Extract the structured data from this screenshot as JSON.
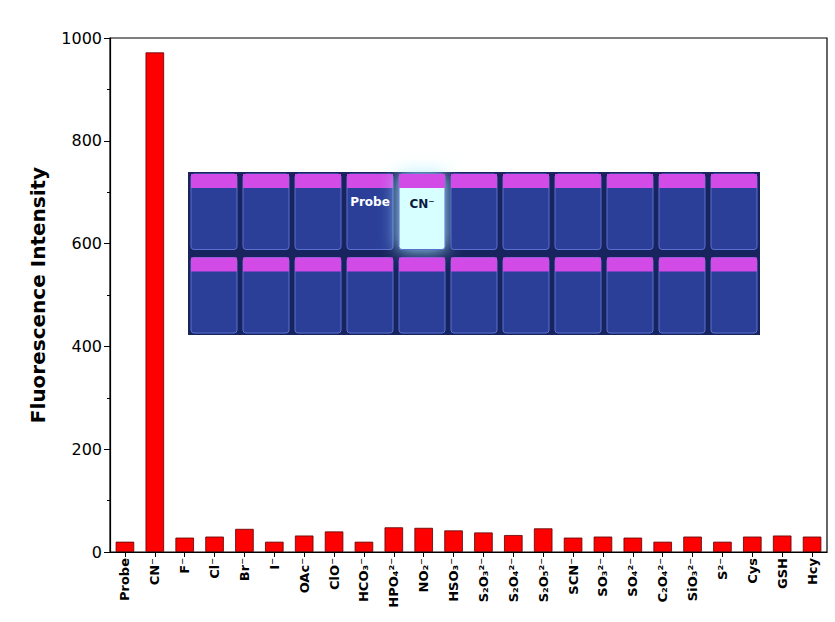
{
  "chart_data": {
    "type": "bar",
    "y_label": "Fluorescence Intensity",
    "categories": [
      "Probe",
      "CN⁻",
      "F⁻",
      "Cl⁻",
      "Br⁻",
      "I⁻",
      "OAc⁻",
      "ClO⁻",
      "HCO₃⁻",
      "HPO₄²⁻",
      "NO₂⁻",
      "HSO₃⁻",
      "S₂O₃²⁻",
      "S₂O₄²⁻",
      "S₂O₅²⁻",
      "SCN⁻",
      "SO₃²⁻",
      "SO₄²⁻",
      "C₂O₄²⁻",
      "SiO₃²⁻",
      "S²⁻",
      "Cys",
      "GSH",
      "Hcy"
    ],
    "values": [
      20,
      972,
      28,
      30,
      45,
      20,
      32,
      40,
      20,
      48,
      47,
      42,
      38,
      33,
      46,
      28,
      30,
      28,
      20,
      30,
      20,
      30,
      32,
      30
    ],
    "color": "#ff0000",
    "ylim": [
      0,
      1000
    ],
    "yticks": [
      0,
      200,
      400,
      600,
      800,
      1000
    ],
    "grid": false,
    "annotations": [
      "Probe",
      "CN⁻"
    ]
  }
}
